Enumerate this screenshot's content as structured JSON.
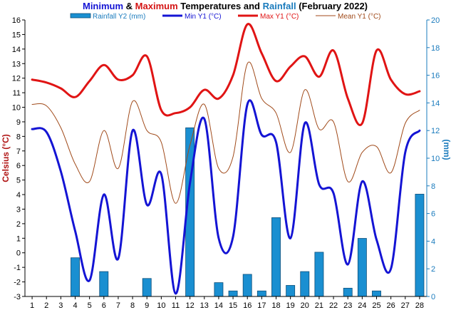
{
  "chart_data": {
    "type": "line",
    "title": {
      "parts": [
        {
          "text": "Minimum",
          "color": "#1414d4"
        },
        {
          "text": " & ",
          "color": "#000000"
        },
        {
          "text": "Maximum",
          "color": "#d41414"
        },
        {
          "text": " Temperatures and ",
          "color": "#000000"
        },
        {
          "text": "Rainfall",
          "color": "#1a7bbd"
        },
        {
          "text": " (February 2022)",
          "color": "#000000"
        }
      ]
    },
    "ylabel_left": "Celsius (°C)",
    "ylabel_right": "(mm)",
    "x": [
      1,
      2,
      3,
      4,
      5,
      6,
      7,
      8,
      9,
      10,
      11,
      12,
      13,
      14,
      15,
      16,
      17,
      18,
      19,
      20,
      21,
      22,
      23,
      24,
      25,
      26,
      27,
      28
    ],
    "y_left": {
      "min": -3,
      "max": 16,
      "step": 1
    },
    "y_right": {
      "min": 0,
      "max": 20,
      "step": 2
    },
    "grid": false,
    "legend_position": "top",
    "series": [
      {
        "name": "Rainfall Y2 (mm)",
        "type": "bar",
        "axis": "right",
        "color": "#1a8fd1",
        "edge": "#0d4f7a",
        "values": [
          0,
          0,
          0,
          2.8,
          0,
          1.8,
          0,
          0,
          1.3,
          0,
          0,
          12.2,
          0,
          1,
          0.4,
          1.6,
          0.4,
          5.7,
          0.8,
          1.8,
          3.2,
          0,
          0.6,
          4.2,
          0.4,
          0,
          0,
          7.4
        ]
      },
      {
        "name": "Min Y1 (°C)",
        "type": "line",
        "axis": "left",
        "color": "#1414d4",
        "width": 3,
        "values": [
          8.5,
          8.3,
          5.6,
          1.5,
          -1.9,
          4.0,
          -0.4,
          8.4,
          3.3,
          5.4,
          -2.8,
          4.8,
          9.2,
          1.0,
          1.1,
          10.2,
          8.1,
          7.6,
          1.0,
          8.9,
          4.7,
          4.1,
          -0.8,
          4.9,
          0.9,
          -1.1,
          6.9,
          8.4
        ]
      },
      {
        "name": "Max Y1 (°C)",
        "type": "line",
        "axis": "left",
        "color": "#e01414",
        "width": 3,
        "values": [
          11.9,
          11.7,
          11.3,
          10.7,
          11.8,
          12.9,
          11.9,
          12.2,
          13.5,
          9.8,
          9.6,
          10.0,
          11.2,
          10.6,
          12.2,
          15.7,
          13.7,
          11.8,
          12.8,
          13.5,
          12.1,
          13.9,
          10.6,
          8.9,
          13.9,
          11.9,
          10.9,
          11.1
        ]
      },
      {
        "name": "Mean Y1 (°C)",
        "type": "line",
        "axis": "left",
        "color": "#a04a1a",
        "width": 1,
        "values": [
          10.2,
          10.1,
          8.6,
          6.1,
          4.9,
          8.4,
          5.8,
          10.4,
          8.4,
          7.6,
          3.4,
          7.4,
          10.2,
          5.8,
          6.6,
          13.0,
          10.6,
          9.6,
          6.9,
          11.2,
          8.5,
          9.0,
          4.9,
          6.9,
          7.3,
          5.5,
          8.9,
          9.8
        ]
      }
    ]
  }
}
